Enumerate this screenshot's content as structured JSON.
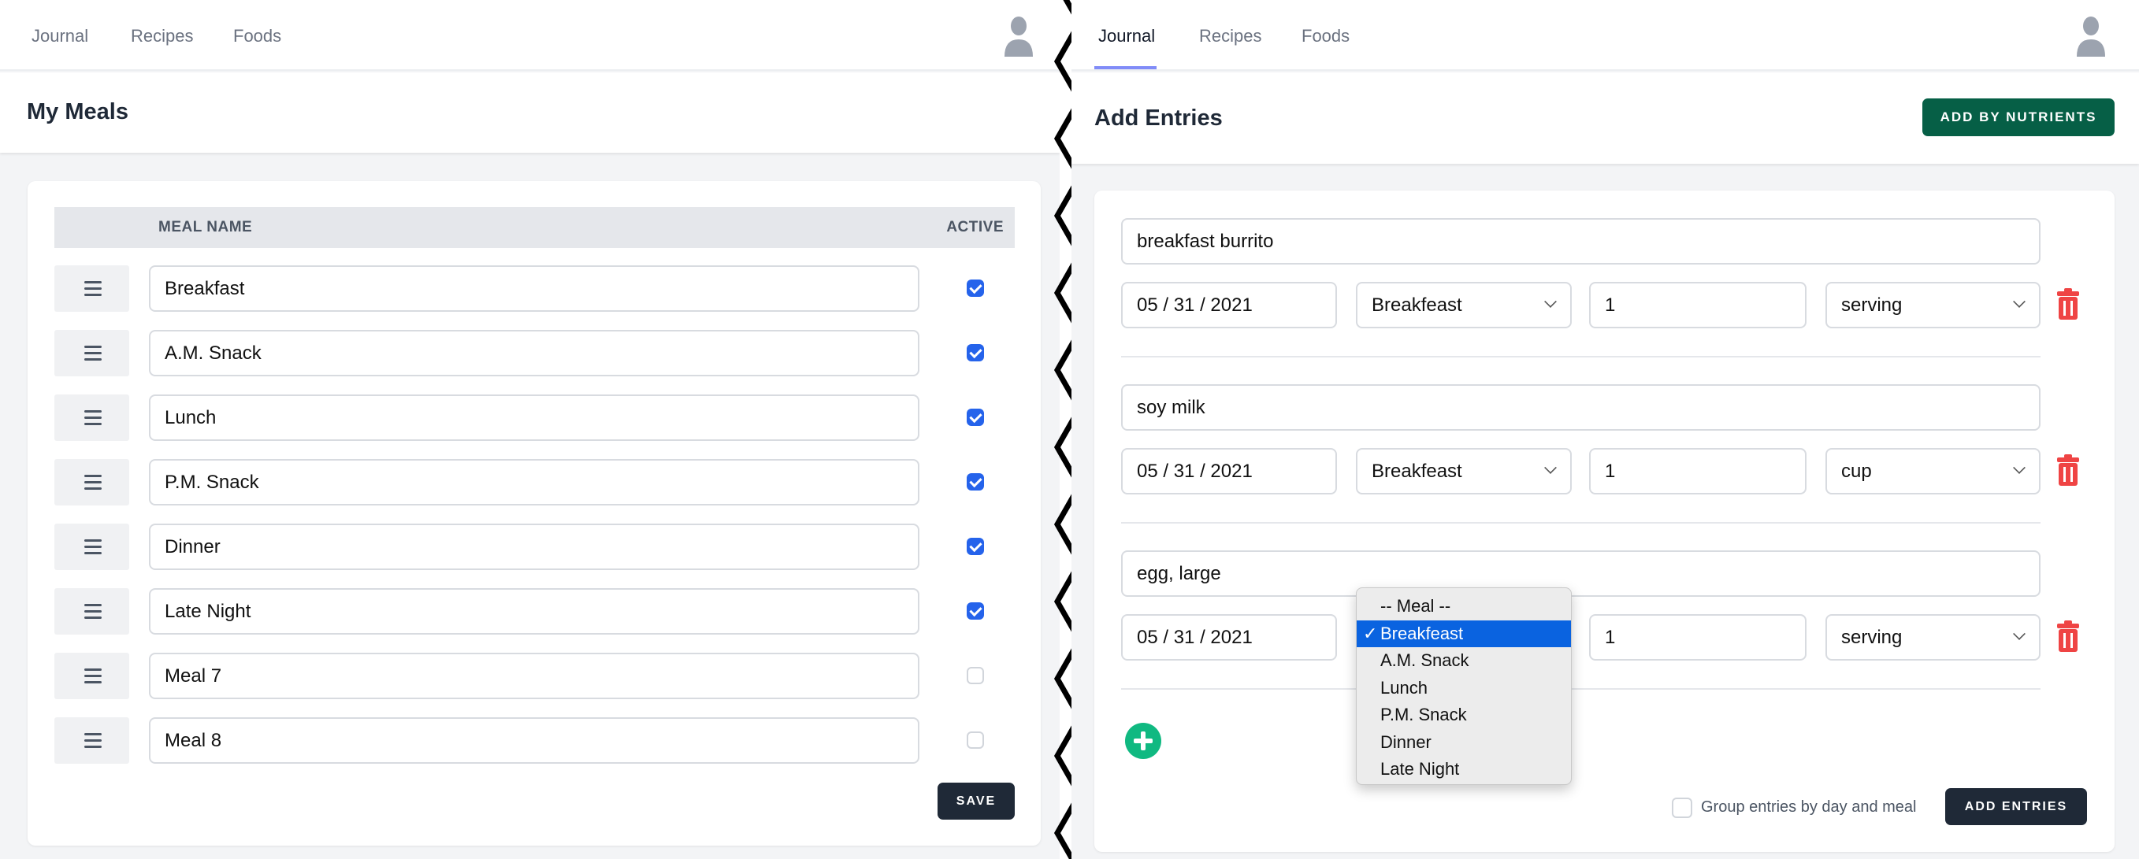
{
  "left": {
    "nav": {
      "items": [
        "Journal",
        "Recipes",
        "Foods"
      ],
      "avatar_icon": "user-avatar-icon"
    },
    "title": "My Meals",
    "table": {
      "headers": {
        "name": "MEAL NAME",
        "active": "ACTIVE"
      },
      "rows": [
        {
          "name": "Breakfast",
          "active": true
        },
        {
          "name": "A.M. Snack",
          "active": true
        },
        {
          "name": "Lunch",
          "active": true
        },
        {
          "name": "P.M. Snack",
          "active": true
        },
        {
          "name": "Dinner",
          "active": true
        },
        {
          "name": "Late Night",
          "active": true
        },
        {
          "name": "Meal 7",
          "active": false
        },
        {
          "name": "Meal 8",
          "active": false
        }
      ]
    },
    "save_label": "SAVE"
  },
  "right": {
    "nav": {
      "items": [
        "Journal",
        "Recipes",
        "Foods"
      ],
      "active": "Journal",
      "avatar_icon": "user-avatar-icon"
    },
    "title": "Add Entries",
    "add_by_nutrients_label": "ADD BY NUTRIENTS",
    "entries": [
      {
        "food": "breakfast burrito",
        "date": "05 / 31 / 2021",
        "meal": "Breakfeast",
        "quantity": "1",
        "unit": "serving"
      },
      {
        "food": "soy milk",
        "date": "05 / 31 / 2021",
        "meal": "Breakfeast",
        "quantity": "1",
        "unit": "cup"
      },
      {
        "food": "egg, large",
        "date": "05 / 31 / 2021",
        "meal": "Breakfeast",
        "quantity": "1",
        "unit": "serving"
      }
    ],
    "meal_dropdown": {
      "options": [
        "-- Meal --",
        "Breakfeast",
        "A.M. Snack",
        "Lunch",
        "P.M. Snack",
        "Dinner",
        "Late Night"
      ],
      "selected": "Breakfeast",
      "check_glyph": "✓"
    },
    "group_label": "Group entries by day and meal",
    "group_checked": false,
    "add_entries_label": "ADD ENTRIES"
  },
  "colors": {
    "accent_green": "#065f46",
    "dark_button": "#1f2937",
    "check_blue": "#2563eb",
    "trash_red": "#ef4444",
    "plus_green": "#10b981",
    "nav_underline": "#818cf8"
  }
}
